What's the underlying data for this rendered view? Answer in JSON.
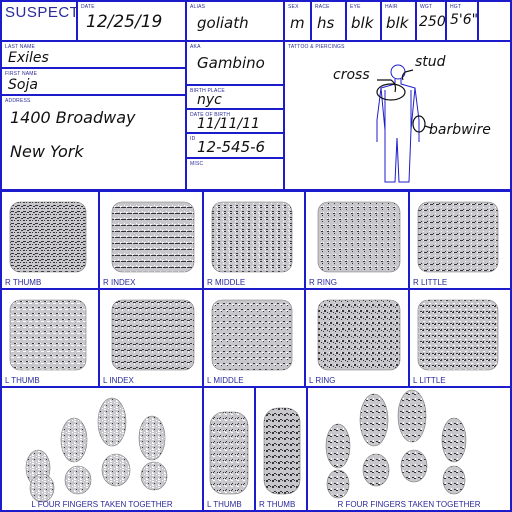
{
  "header": {
    "title": "SUSPECT",
    "date_label": "DATE",
    "date": "12/25/19",
    "aka_label": "ALIAS",
    "aka": "goliath",
    "sex_label": "SEX",
    "sex": "m",
    "race_label": "RACE",
    "race": "hs",
    "eye_label": "EYE",
    "eye": "blk",
    "hair_label": "HAIR",
    "hair": "blk",
    "wgt_label": "WGT",
    "wgt": "250",
    "hgt_label": "HGT",
    "hgt": "5'6\""
  },
  "details": {
    "last_name_label": "LAST NAME",
    "last_name": "Exiles",
    "first_name_label": "FIRST NAME",
    "first_name": "Soja",
    "address_label": "ADDRESS",
    "address_line1": "1400 Broadway",
    "address_line2": "New York",
    "aka2_label": "AKA",
    "aka2": "Gambino",
    "birthplace_label": "BIRTH PLACE",
    "birthplace": "nyc",
    "dob_label": "DATE OF BIRTH",
    "dob": "11/11/11",
    "id_label": "ID",
    "id_value": "12-545-6",
    "misc_label": "MISC",
    "tattoo_label": "TATTOO & PIERCINGS",
    "tattoo_cross": "cross",
    "tattoo_stud": "stud",
    "tattoo_barbwire": "barbwire"
  },
  "prints": {
    "row1": [
      "R THUMB",
      "R INDEX",
      "R MIDDLE",
      "R RING",
      "R LITTLE"
    ],
    "row2": [
      "L THUMB",
      "L INDEX",
      "L MIDDLE",
      "L RING",
      "L LITTLE"
    ],
    "row3": [
      "L FOUR FINGERS TAKEN TOGETHER",
      "L THUMB",
      "R THUMB",
      "R FOUR FINGERS TAKEN TOGETHER"
    ]
  },
  "colors": {
    "border": "#1c1ccc",
    "label": "#2a2a9a",
    "ink": "#111111"
  }
}
